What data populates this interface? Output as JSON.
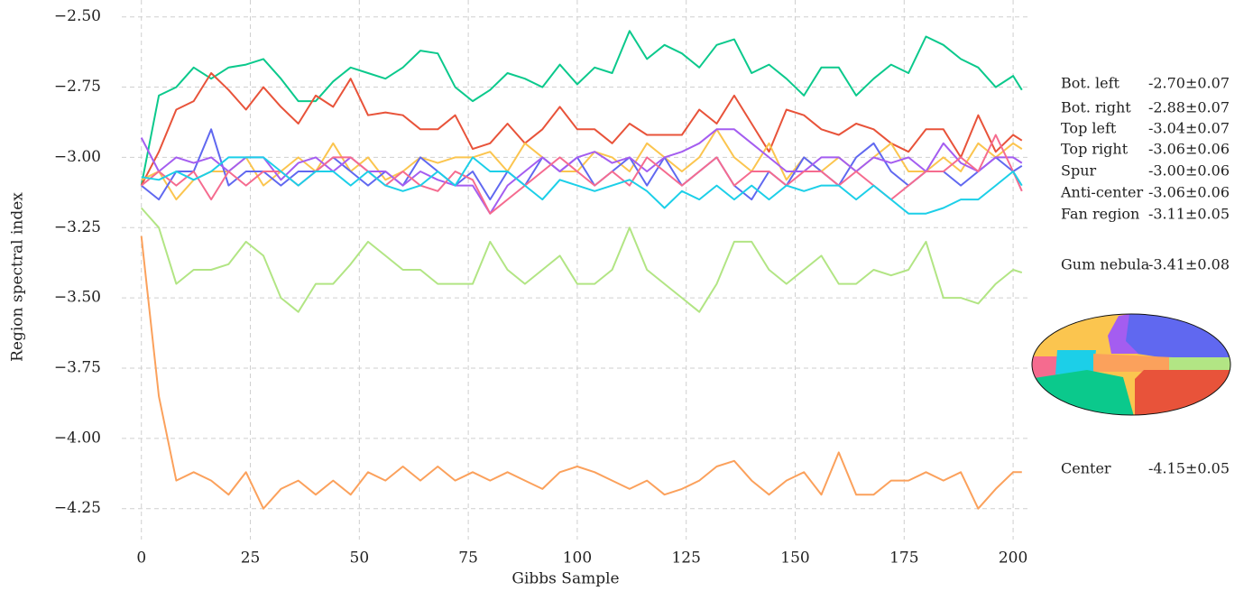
{
  "chart_data": {
    "type": "line",
    "xlabel": "Gibbs Sample",
    "ylabel": "Region spectral index",
    "xlim": [
      -4.5,
      203.5
    ],
    "ylim": [
      -4.36,
      -2.44
    ],
    "xticks": [
      0,
      25,
      50,
      75,
      100,
      125,
      150,
      175,
      200
    ],
    "yticks": [
      {
        "value": -2.5,
        "label": "−2.50"
      },
      {
        "value": -2.75,
        "label": "−2.75"
      },
      {
        "value": -3.0,
        "label": "−3.00"
      },
      {
        "value": -3.25,
        "label": "−3.25"
      },
      {
        "value": -3.5,
        "label": "−3.50"
      },
      {
        "value": -3.75,
        "label": "−3.75"
      },
      {
        "value": -4.0,
        "label": "−4.00"
      },
      {
        "value": -4.25,
        "label": "−4.25"
      }
    ],
    "grid": true,
    "x": [
      0,
      4,
      8,
      12,
      16,
      20,
      24,
      28,
      32,
      36,
      40,
      44,
      48,
      52,
      56,
      60,
      64,
      68,
      72,
      76,
      80,
      84,
      88,
      92,
      96,
      100,
      104,
      108,
      112,
      116,
      120,
      124,
      128,
      132,
      136,
      140,
      144,
      148,
      152,
      156,
      160,
      164,
      168,
      172,
      176,
      180,
      184,
      188,
      192,
      196,
      200,
      202
    ],
    "series": [
      {
        "name": "Bot. left",
        "legend_value": "-2.70±0.07",
        "color": "#0bc98c",
        "values": [
          -3.1,
          -2.78,
          -2.75,
          -2.68,
          -2.72,
          -2.68,
          -2.67,
          -2.65,
          -2.72,
          -2.8,
          -2.8,
          -2.73,
          -2.68,
          -2.7,
          -2.72,
          -2.68,
          -2.62,
          -2.63,
          -2.75,
          -2.8,
          -2.76,
          -2.7,
          -2.72,
          -2.75,
          -2.67,
          -2.74,
          -2.68,
          -2.7,
          -2.55,
          -2.65,
          -2.6,
          -2.63,
          -2.68,
          -2.6,
          -2.58,
          -2.7,
          -2.67,
          -2.72,
          -2.78,
          -2.68,
          -2.68,
          -2.78,
          -2.72,
          -2.67,
          -2.7,
          -2.57,
          -2.6,
          -2.65,
          -2.68,
          -2.75,
          -2.71,
          -2.76
        ]
      },
      {
        "name": "Bot. right",
        "legend_value": "-2.88±0.07",
        "color": "#e8533a",
        "values": [
          -3.1,
          -2.98,
          -2.83,
          -2.8,
          -2.7,
          -2.76,
          -2.83,
          -2.75,
          -2.82,
          -2.88,
          -2.78,
          -2.82,
          -2.72,
          -2.85,
          -2.84,
          -2.85,
          -2.9,
          -2.9,
          -2.85,
          -2.97,
          -2.95,
          -2.88,
          -2.95,
          -2.9,
          -2.82,
          -2.9,
          -2.9,
          -2.95,
          -2.88,
          -2.92,
          -2.92,
          -2.92,
          -2.83,
          -2.88,
          -2.78,
          -2.88,
          -2.98,
          -2.83,
          -2.85,
          -2.9,
          -2.92,
          -2.88,
          -2.9,
          -2.95,
          -2.98,
          -2.9,
          -2.9,
          -3.0,
          -2.85,
          -2.98,
          -2.92,
          -2.94
        ]
      },
      {
        "name": "Top left",
        "legend_value": "-3.04±0.07",
        "color": "#fbc54f",
        "values": [
          -3.08,
          -3.05,
          -3.15,
          -3.08,
          -3.05,
          -3.05,
          -3.0,
          -3.1,
          -3.05,
          -3.0,
          -3.05,
          -2.95,
          -3.05,
          -3.0,
          -3.08,
          -3.05,
          -3.0,
          -3.02,
          -3.0,
          -3.0,
          -2.98,
          -3.05,
          -2.95,
          -3.0,
          -3.05,
          -3.05,
          -2.98,
          -3.0,
          -3.05,
          -2.95,
          -3.0,
          -3.05,
          -3.0,
          -2.9,
          -3.0,
          -3.05,
          -2.95,
          -3.08,
          -3.0,
          -3.05,
          -3.0,
          -3.05,
          -3.0,
          -2.95,
          -3.05,
          -3.05,
          -3.0,
          -3.05,
          -2.95,
          -3.0,
          -2.95,
          -2.97
        ]
      },
      {
        "name": "Top right",
        "legend_value": "-3.06±0.06",
        "color": "#6068f0",
        "values": [
          -3.1,
          -3.15,
          -3.05,
          -3.05,
          -2.9,
          -3.1,
          -3.05,
          -3.05,
          -3.1,
          -3.05,
          -3.05,
          -3.0,
          -3.05,
          -3.1,
          -3.05,
          -3.1,
          -3.0,
          -3.05,
          -3.1,
          -3.05,
          -3.15,
          -3.05,
          -3.1,
          -3.0,
          -3.05,
          -3.0,
          -3.1,
          -3.05,
          -3.0,
          -3.1,
          -3.0,
          -3.1,
          -3.05,
          -3.0,
          -3.1,
          -3.15,
          -3.05,
          -3.1,
          -3.0,
          -3.05,
          -3.1,
          -3.0,
          -2.95,
          -3.05,
          -3.1,
          -3.05,
          -3.05,
          -3.1,
          -3.05,
          -3.0,
          -3.05,
          -3.03
        ]
      },
      {
        "name": "Spur",
        "legend_value": "-3.00±0.06",
        "color": "#a45df0",
        "values": [
          -2.93,
          -3.05,
          -3.0,
          -3.02,
          -3.0,
          -3.05,
          -3.0,
          -3.0,
          -3.08,
          -3.02,
          -3.0,
          -3.05,
          -3.0,
          -3.05,
          -3.05,
          -3.1,
          -3.05,
          -3.08,
          -3.1,
          -3.1,
          -3.2,
          -3.1,
          -3.05,
          -3.0,
          -3.05,
          -3.0,
          -2.98,
          -3.02,
          -3.0,
          -3.05,
          -3.0,
          -2.98,
          -2.95,
          -2.9,
          -2.9,
          -2.95,
          -3.0,
          -3.05,
          -3.05,
          -3.0,
          -3.0,
          -3.05,
          -3.0,
          -3.02,
          -3.0,
          -3.05,
          -2.95,
          -3.02,
          -3.05,
          -3.0,
          -3.0,
          -3.02
        ]
      },
      {
        "name": "Anti-center",
        "legend_value": "-3.06±0.06",
        "color": "#f56b8f",
        "values": [
          -3.1,
          -3.05,
          -3.1,
          -3.05,
          -3.15,
          -3.05,
          -3.1,
          -3.05,
          -3.05,
          -3.1,
          -3.05,
          -3.0,
          -3.0,
          -3.05,
          -3.1,
          -3.05,
          -3.1,
          -3.12,
          -3.05,
          -3.08,
          -3.2,
          -3.15,
          -3.1,
          -3.05,
          -3.0,
          -3.05,
          -3.1,
          -3.05,
          -3.1,
          -3.0,
          -3.05,
          -3.1,
          -3.05,
          -3.0,
          -3.1,
          -3.05,
          -3.05,
          -3.1,
          -3.05,
          -3.05,
          -3.1,
          -3.05,
          -3.1,
          -3.15,
          -3.1,
          -3.05,
          -3.05,
          -3.0,
          -3.05,
          -2.92,
          -3.05,
          -3.12
        ]
      },
      {
        "name": "Fan region",
        "legend_value": "-3.11±0.05",
        "color": "#1ccfe8",
        "values": [
          -3.07,
          -3.08,
          -3.05,
          -3.08,
          -3.05,
          -3.0,
          -3.0,
          -3.0,
          -3.05,
          -3.1,
          -3.05,
          -3.05,
          -3.1,
          -3.05,
          -3.1,
          -3.12,
          -3.1,
          -3.05,
          -3.1,
          -3.0,
          -3.05,
          -3.05,
          -3.1,
          -3.15,
          -3.08,
          -3.1,
          -3.12,
          -3.1,
          -3.08,
          -3.12,
          -3.18,
          -3.12,
          -3.15,
          -3.1,
          -3.15,
          -3.1,
          -3.15,
          -3.1,
          -3.12,
          -3.1,
          -3.1,
          -3.15,
          -3.1,
          -3.15,
          -3.2,
          -3.2,
          -3.18,
          -3.15,
          -3.15,
          -3.1,
          -3.05,
          -3.1
        ]
      },
      {
        "name": "Gum nebula",
        "legend_value": "-3.41±0.08",
        "color": "#b2e584",
        "values": [
          -3.18,
          -3.25,
          -3.45,
          -3.4,
          -3.4,
          -3.38,
          -3.3,
          -3.35,
          -3.5,
          -3.55,
          -3.45,
          -3.45,
          -3.38,
          -3.3,
          -3.35,
          -3.4,
          -3.4,
          -3.45,
          -3.45,
          -3.45,
          -3.3,
          -3.4,
          -3.45,
          -3.4,
          -3.35,
          -3.45,
          -3.45,
          -3.4,
          -3.25,
          -3.4,
          -3.45,
          -3.5,
          -3.55,
          -3.45,
          -3.3,
          -3.3,
          -3.4,
          -3.45,
          -3.4,
          -3.35,
          -3.45,
          -3.45,
          -3.4,
          -3.42,
          -3.4,
          -3.3,
          -3.5,
          -3.5,
          -3.52,
          -3.45,
          -3.4,
          -3.41
        ]
      },
      {
        "name": "Center",
        "legend_value": "-4.15±0.05",
        "color": "#fba15c",
        "values": [
          -3.28,
          -3.85,
          -4.15,
          -4.12,
          -4.15,
          -4.2,
          -4.12,
          -4.25,
          -4.18,
          -4.15,
          -4.2,
          -4.15,
          -4.2,
          -4.12,
          -4.15,
          -4.1,
          -4.15,
          -4.1,
          -4.15,
          -4.12,
          -4.15,
          -4.12,
          -4.15,
          -4.18,
          -4.12,
          -4.1,
          -4.12,
          -4.15,
          -4.18,
          -4.15,
          -4.2,
          -4.18,
          -4.15,
          -4.1,
          -4.08,
          -4.15,
          -4.2,
          -4.15,
          -4.12,
          -4.2,
          -4.05,
          -4.2,
          -4.2,
          -4.15,
          -4.15,
          -4.12,
          -4.15,
          -4.12,
          -4.25,
          -4.18,
          -4.12,
          -4.12
        ]
      }
    ]
  }
}
